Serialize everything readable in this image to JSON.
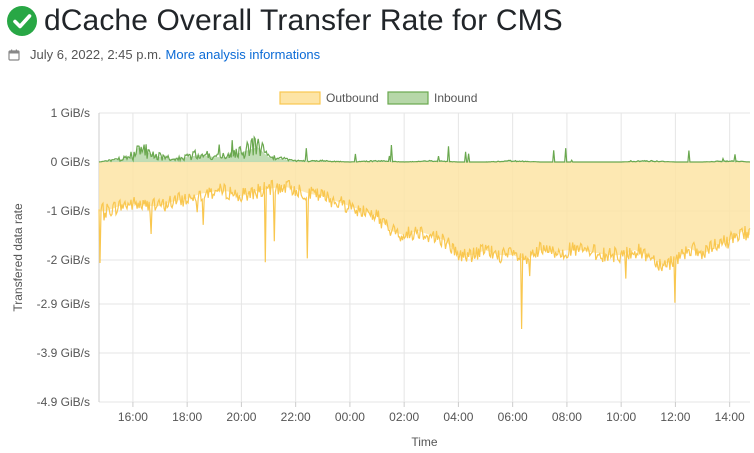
{
  "header": {
    "title": "dCache Overall Transfer Rate for CMS",
    "date": "July 6, 2022, 2:45 p.m.",
    "link_label": "More analysis informations"
  },
  "colors": {
    "outbound_line": "#f9c74f",
    "outbound_fill": "#fde4a5",
    "inbound_line": "#6aa84f",
    "inbound_fill": "#b6d7a8",
    "grid": "#e5e5e5",
    "check": "#28a745"
  },
  "chart_data": {
    "type": "area",
    "xlabel": "Time",
    "ylabel": "Transfered data rate",
    "legend_position": "top-center",
    "grid": true,
    "y_ticks": [
      "1 GiB/s",
      "0 GiB/s",
      "-1 GiB/s",
      "-2 GiB/s",
      "-2.9 GiB/s",
      "-3.9 GiB/s",
      "-4.9 GiB/s"
    ],
    "y_tick_values": [
      1,
      0,
      -1,
      -2,
      -2.9,
      -3.9,
      -4.9
    ],
    "ylim": [
      -4.9,
      1
    ],
    "x_ticks": [
      "16:00",
      "18:00",
      "20:00",
      "22:00",
      "00:00",
      "02:00",
      "04:00",
      "06:00",
      "08:00",
      "10:00",
      "12:00",
      "14:00"
    ],
    "x_tick_hours": [
      16,
      18,
      20,
      22,
      24,
      26,
      28,
      30,
      32,
      34,
      36,
      38
    ],
    "xlim_hours": [
      14.75,
      38.75
    ],
    "series": [
      {
        "name": "Outbound",
        "hours": [
          14.75,
          15.0,
          15.5,
          16.0,
          16.5,
          17.0,
          17.5,
          18.0,
          18.5,
          19.0,
          19.5,
          20.0,
          20.5,
          21.0,
          21.5,
          22.0,
          22.5,
          23.0,
          23.5,
          24.0,
          24.5,
          25.0,
          25.5,
          26.0,
          26.5,
          27.0,
          27.5,
          28.0,
          28.5,
          29.0,
          29.5,
          30.0,
          30.5,
          31.0,
          31.5,
          32.0,
          32.5,
          33.0,
          33.5,
          34.0,
          34.5,
          35.0,
          35.5,
          36.0,
          36.5,
          37.0,
          37.5,
          38.0,
          38.5,
          38.75
        ],
        "values": [
          -1.0,
          -1.0,
          -0.9,
          -0.85,
          -0.9,
          -0.9,
          -0.8,
          -0.75,
          -0.65,
          -0.6,
          -0.6,
          -0.7,
          -0.6,
          -0.55,
          -0.5,
          -0.55,
          -0.65,
          -0.7,
          -0.8,
          -0.9,
          -1.0,
          -1.1,
          -1.4,
          -1.5,
          -1.4,
          -1.5,
          -1.6,
          -1.9,
          -1.9,
          -1.8,
          -1.9,
          -1.9,
          -2.0,
          -1.8,
          -1.85,
          -1.8,
          -1.8,
          -1.85,
          -1.9,
          -1.9,
          -1.8,
          -1.9,
          -2.1,
          -2.0,
          -1.75,
          -1.9,
          -1.7,
          -1.6,
          -1.4,
          -1.5
        ]
      },
      {
        "name": "Inbound",
        "hours": [
          14.75,
          15.5,
          16.0,
          16.2,
          16.5,
          17.0,
          17.5,
          18.0,
          18.5,
          19.0,
          19.5,
          20.0,
          20.3,
          20.6,
          21.0,
          22.0,
          23.0,
          24.0,
          25.0,
          26.0,
          27.0,
          28.0,
          29.0,
          30.0,
          31.0,
          32.0,
          33.0,
          34.0,
          35.0,
          36.0,
          37.0,
          38.0,
          38.75
        ],
        "values": [
          0.0,
          0.05,
          0.1,
          0.3,
          0.2,
          0.1,
          0.05,
          0.1,
          0.15,
          0.1,
          0.1,
          0.2,
          0.25,
          0.3,
          0.1,
          0.02,
          0.02,
          0.0,
          0.02,
          0.0,
          0.02,
          0.0,
          0.0,
          0.02,
          0.0,
          0.0,
          0.0,
          0.0,
          0.02,
          0.0,
          0.0,
          0.02,
          0.0
        ]
      }
    ]
  }
}
